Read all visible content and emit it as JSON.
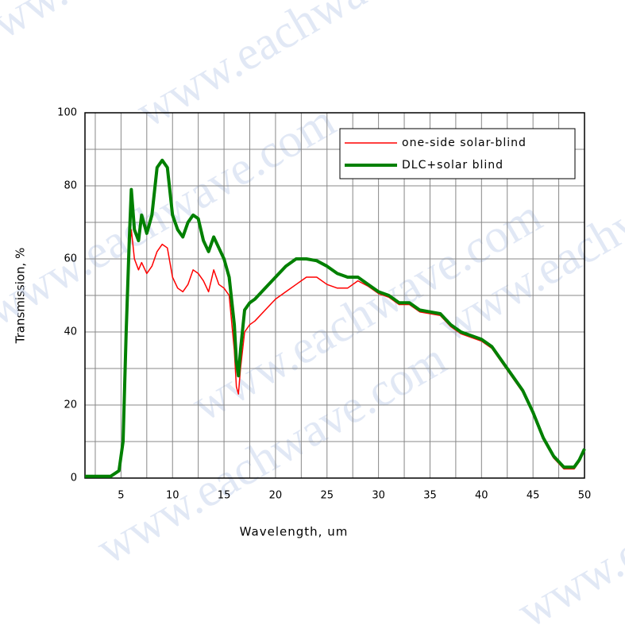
{
  "chart_data": {
    "type": "line",
    "xlabel": "Wavelength, um",
    "ylabel": "Transmission, %",
    "watermark": "www.eachwave.com",
    "x": [
      1.5,
      3,
      4,
      4.8,
      5.2,
      5.5,
      5.8,
      6,
      6.3,
      6.7,
      7,
      7.5,
      8,
      8.5,
      9,
      9.5,
      10,
      10.5,
      11,
      11.5,
      12,
      12.5,
      13,
      13.5,
      14,
      14.5,
      15,
      15.5,
      16,
      16.2,
      16.4,
      16.6,
      17,
      17.5,
      18,
      19,
      20,
      21,
      22,
      23,
      24,
      25,
      26,
      27,
      28,
      29,
      30,
      31,
      32,
      33,
      34,
      35,
      36,
      37,
      38,
      39,
      40,
      41,
      42,
      43,
      44,
      45,
      46,
      47,
      48,
      49,
      49.5,
      50
    ],
    "series": [
      {
        "name": "one-side solar-blind",
        "color": "#ff0000",
        "width": 1.5,
        "values": [
          0.5,
          0.5,
          0.5,
          2,
          10,
          40,
          62,
          68,
          60,
          57,
          59,
          56,
          58,
          62,
          64,
          63,
          55,
          52,
          51,
          53,
          57,
          56,
          54,
          51,
          57,
          53,
          52,
          50,
          35,
          25,
          23,
          30,
          40,
          42,
          43,
          46,
          49,
          51,
          53,
          55,
          55,
          53,
          52,
          52,
          54,
          52.5,
          50.5,
          49.5,
          47.5,
          47.5,
          45.5,
          45,
          44.5,
          41.5,
          39.5,
          38.5,
          37.5,
          35.5,
          31.5,
          27.5,
          23.5,
          17.5,
          10.5,
          5.5,
          2.5,
          2.5,
          4.5,
          7.5
        ]
      },
      {
        "name": "DLC+solar blind",
        "color": "#008000",
        "width": 4,
        "values": [
          0.5,
          0.5,
          0.5,
          2,
          10,
          40,
          65,
          79,
          68,
          65,
          72,
          67,
          72,
          85,
          87,
          85,
          72,
          68,
          66,
          70,
          72,
          71,
          65,
          62,
          66,
          63,
          60,
          55,
          42,
          32,
          28,
          35,
          46,
          48,
          49,
          52,
          55,
          58,
          60,
          60,
          59.5,
          58,
          56,
          55,
          55,
          53,
          51,
          50,
          48,
          48,
          46,
          45.5,
          45,
          42,
          40,
          39,
          38,
          36,
          32,
          28,
          24,
          18,
          11,
          6,
          3,
          3,
          5,
          8
        ]
      }
    ],
    "xlim": [
      1.5,
      50
    ],
    "ylim": [
      0,
      100
    ],
    "xticks": [
      5,
      10,
      15,
      20,
      25,
      30,
      35,
      40,
      45,
      50
    ],
    "xminorticks": [
      2.5,
      7.5,
      12.5,
      17.5,
      22.5,
      27.5,
      32.5,
      37.5,
      42.5,
      47.5
    ],
    "yticks": [
      0,
      20,
      40,
      60,
      80,
      100
    ],
    "yminorticks": [
      10,
      30,
      50,
      70,
      90
    ],
    "grid": true,
    "legend": "upper right"
  }
}
